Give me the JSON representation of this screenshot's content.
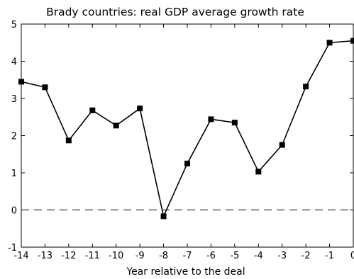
{
  "chart_data": {
    "type": "line",
    "title": "Brady countries: real GDP average growth rate",
    "xlabel": "Year relative to the deal",
    "ylabel": "",
    "xlim": [
      -14,
      0
    ],
    "ylim": [
      -1,
      5
    ],
    "xticks": [
      "-14",
      "-13",
      "-12",
      "-11",
      "-10",
      "-9",
      "-8",
      "-7",
      "-6",
      "-5",
      "-4",
      "-3",
      "-2",
      "-1",
      "0"
    ],
    "yticks": [
      "-1",
      "0",
      "1",
      "2",
      "3",
      "4",
      "5"
    ],
    "grid": false,
    "reference_line": {
      "y": 0,
      "style": "dashed"
    },
    "series": [
      {
        "marker": "square",
        "color": "#000000",
        "x": [
          -14,
          -13,
          -12,
          -11,
          -10,
          -9,
          -8,
          -7,
          -6,
          -5,
          -4,
          -3,
          -2,
          -1,
          0
        ],
        "y": [
          3.45,
          3.3,
          1.87,
          2.68,
          2.27,
          2.73,
          -0.17,
          1.25,
          2.44,
          2.35,
          1.03,
          1.75,
          3.32,
          4.5,
          4.55
        ]
      }
    ]
  }
}
